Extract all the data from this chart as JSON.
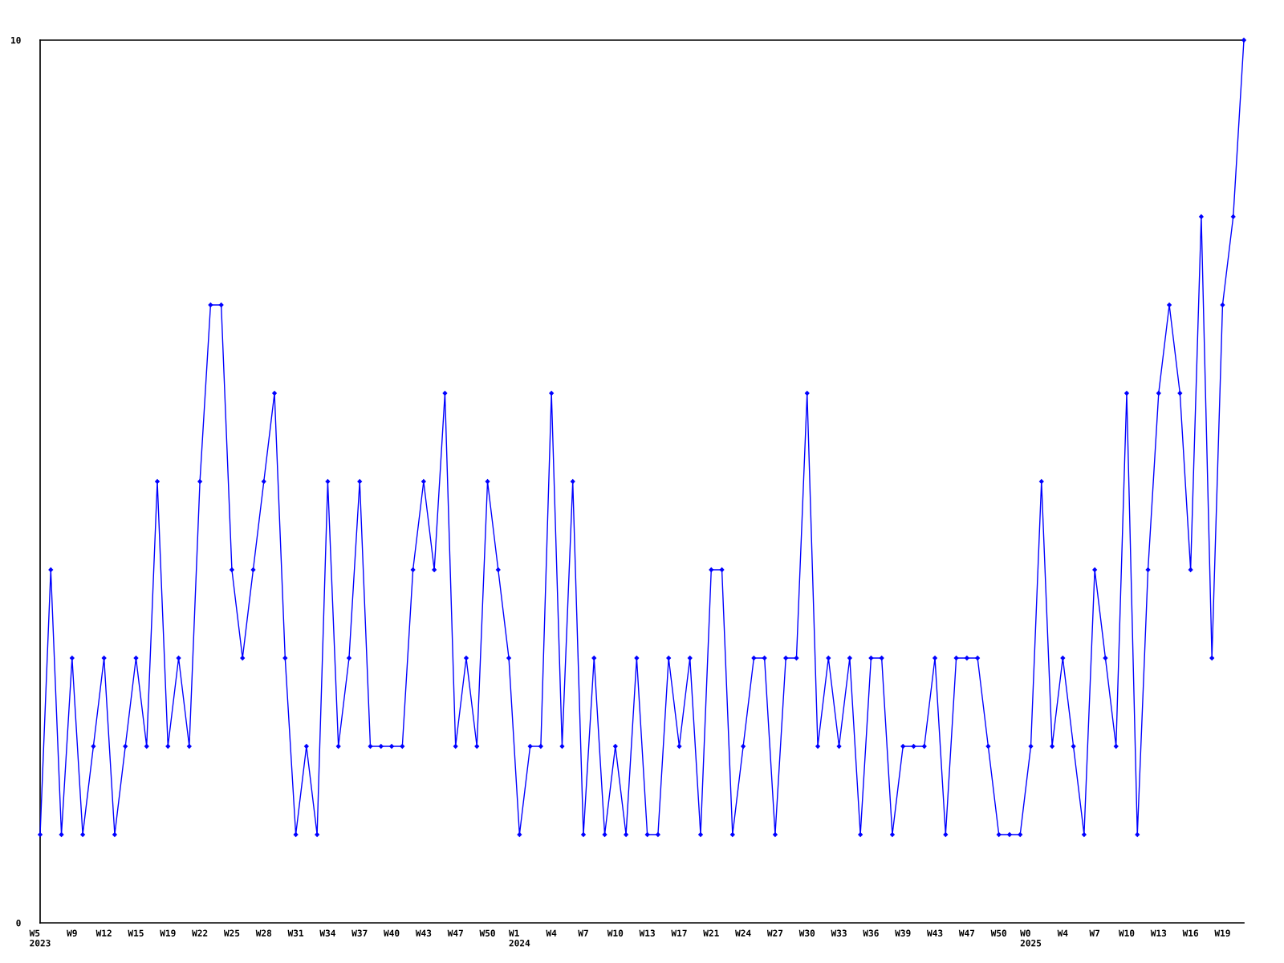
{
  "chart_data": {
    "type": "line",
    "categories": [
      "W5\n2023",
      null,
      null,
      "W9",
      null,
      null,
      "W12",
      null,
      null,
      "W15",
      null,
      null,
      "W19",
      null,
      null,
      "W22",
      null,
      null,
      "W25",
      null,
      null,
      "W28",
      null,
      null,
      "W31",
      null,
      null,
      "W34",
      null,
      null,
      "W37",
      null,
      null,
      "W40",
      null,
      null,
      "W43",
      null,
      null,
      "W47",
      null,
      null,
      "W50",
      null,
      null,
      "W1\n2024",
      null,
      null,
      "W4",
      null,
      null,
      "W7",
      null,
      null,
      "W10",
      null,
      null,
      "W13",
      null,
      null,
      "W17",
      null,
      null,
      "W21",
      null,
      null,
      "W24",
      null,
      null,
      "W27",
      null,
      null,
      "W30",
      null,
      null,
      "W33",
      null,
      null,
      "W36",
      null,
      null,
      "W39",
      null,
      null,
      "W43",
      null,
      null,
      "W47",
      null,
      null,
      "W50",
      null,
      null,
      "W0\n2025",
      null,
      null,
      "W4",
      null,
      null,
      "W7",
      null,
      null,
      "W10",
      null,
      null,
      "W13",
      null,
      null,
      "W16",
      null,
      null,
      "W19",
      null,
      null
    ],
    "values": [
      1,
      4,
      1,
      3,
      1,
      2,
      3,
      1,
      2,
      3,
      2,
      5,
      2,
      3,
      2,
      5,
      7,
      7,
      4,
      3,
      4,
      5,
      6,
      3,
      1,
      2,
      1,
      5,
      2,
      3,
      5,
      2,
      2,
      2,
      2,
      4,
      5,
      4,
      6,
      2,
      3,
      2,
      5,
      4,
      3,
      1,
      2,
      2,
      6,
      2,
      5,
      1,
      3,
      1,
      2,
      1,
      3,
      1,
      1,
      3,
      2,
      3,
      1,
      4,
      4,
      1,
      2,
      3,
      3,
      1,
      3,
      3,
      6,
      2,
      3,
      2,
      3,
      1,
      3,
      3,
      1,
      2,
      2,
      2,
      3,
      1,
      3,
      3,
      3,
      2,
      1,
      1,
      1,
      2,
      5,
      2,
      3,
      2,
      1,
      4,
      3,
      2,
      6,
      1,
      4,
      6,
      7,
      6,
      4,
      8,
      3,
      7,
      8,
      10
    ],
    "color": "#0000ff",
    "ylim": [
      0,
      10
    ],
    "yticks": [
      0,
      10
    ],
    "marker": "diamond",
    "line_style": "solid"
  }
}
